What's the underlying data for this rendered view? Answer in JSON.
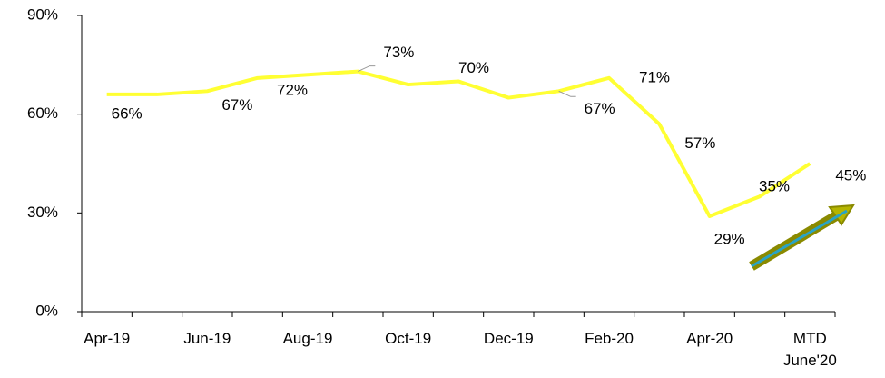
{
  "chart_data": {
    "type": "line",
    "categories": [
      "Apr-19",
      null,
      "Jun-19",
      null,
      "Aug-19",
      null,
      "Oct-19",
      null,
      "Dec-19",
      null,
      "Feb-20",
      null,
      "Apr-20",
      null,
      "MTD\nJune'20"
    ],
    "series": [
      {
        "color": "#ffff33",
        "values": [
          66,
          66,
          67,
          71,
          72,
          73,
          69,
          70,
          65,
          67,
          71,
          57,
          29,
          35,
          45
        ],
        "value_labels": [
          "66%",
          null,
          "67%",
          null,
          "72%",
          "73%",
          null,
          "70%",
          null,
          "67%",
          "71%",
          "57%",
          "29%",
          "35%",
          "45%"
        ]
      }
    ],
    "ylim": [
      0,
      90
    ],
    "yticks": [
      {
        "value": 0,
        "label": "0%"
      },
      {
        "value": 30,
        "label": "30%"
      },
      {
        "value": 60,
        "label": "60%"
      },
      {
        "value": 90,
        "label": "90%"
      }
    ]
  }
}
